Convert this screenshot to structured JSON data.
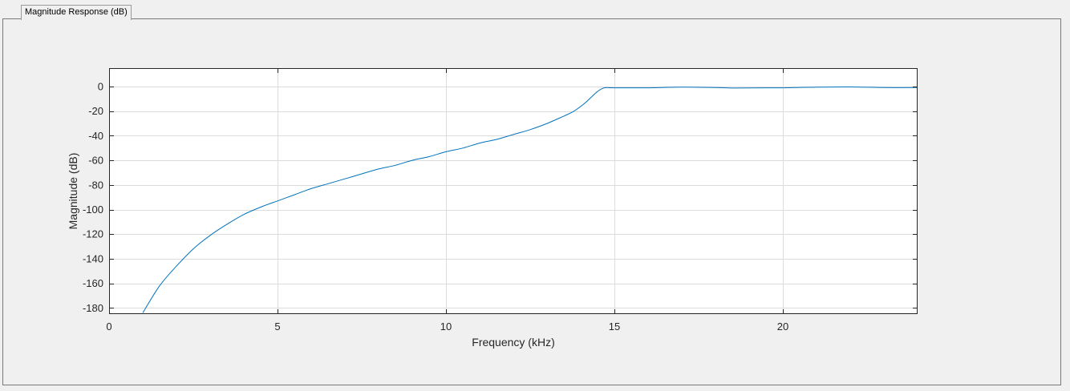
{
  "tab": {
    "label": "Magnitude Response (dB)"
  },
  "chart_data": {
    "type": "line",
    "xlabel": "Frequency (kHz)",
    "ylabel": "Magnitude (dB)",
    "xlim": [
      0,
      24
    ],
    "ylim": [
      -185,
      15
    ],
    "xticks": [
      0,
      5,
      10,
      15,
      20
    ],
    "yticks": [
      0,
      -20,
      -40,
      -60,
      -80,
      -100,
      -120,
      -140,
      -160,
      -180
    ],
    "grid": true,
    "series_color": "#0072bd",
    "series": [
      {
        "x": [
          1.0,
          1.5,
          2.0,
          2.5,
          3.0,
          3.5,
          4.0,
          4.5,
          5.0,
          5.5,
          6.0,
          6.5,
          7.0,
          7.5,
          8.0,
          8.5,
          9.0,
          9.5,
          10.0,
          10.5,
          11.0,
          11.5,
          12.0,
          12.5,
          13.0,
          13.5,
          13.8,
          14.1,
          14.3,
          14.5,
          14.7,
          15.0,
          16.0,
          17.0,
          18.0,
          18.6,
          19.5,
          20.0,
          21.0,
          22.0,
          23.0,
          24.0
        ],
        "y": [
          -184,
          -162,
          -146,
          -132,
          -121,
          -112,
          -104,
          -98,
          -93,
          -88,
          -83,
          -79,
          -75,
          -71,
          -67,
          -64,
          -60,
          -57,
          -53,
          -50,
          -46,
          -43,
          -39,
          -35,
          -30,
          -24,
          -20,
          -14,
          -9,
          -4,
          -1,
          -1,
          -1,
          -0.5,
          -0.8,
          -1.2,
          -1,
          -1,
          -0.5,
          -0.3,
          -0.8,
          -0.8
        ]
      }
    ]
  }
}
